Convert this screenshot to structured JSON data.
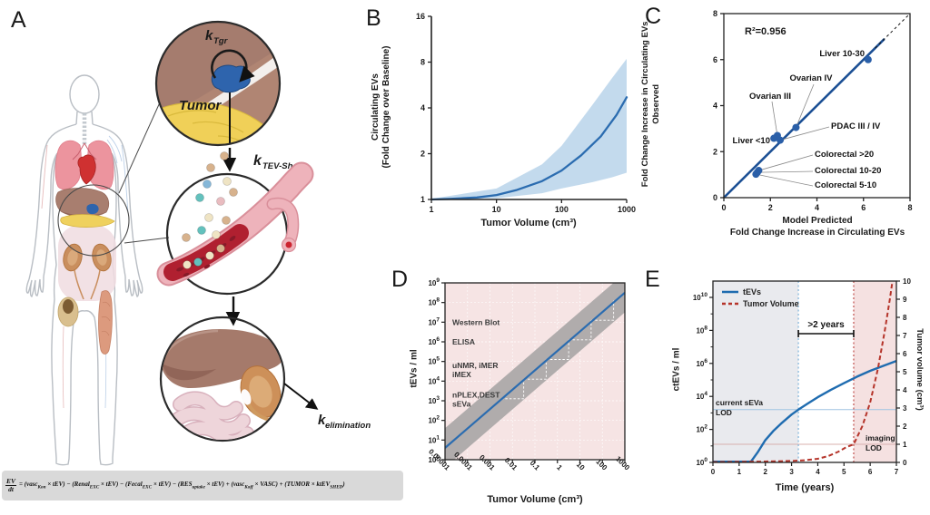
{
  "panels": {
    "A": {
      "letter": "A",
      "labels": {
        "k_tgr_base": "k",
        "k_tgr_sub": "Tgr",
        "tumor": "Tumor",
        "k_shed_base": "k",
        "k_shed_sub": "TEV-Shed",
        "k_elim_base": "k",
        "k_elim_sub": "elimination"
      },
      "equation": {
        "numerator": "EV",
        "denominator": "dt",
        "segments": [
          {
            "t": "n",
            "s": " = (vasc"
          },
          {
            "t": "s",
            "s": "Kon"
          },
          {
            "t": "n",
            "s": " × tEV) − (Renal"
          },
          {
            "t": "s",
            "s": "EXC"
          },
          {
            "t": "n",
            "s": " × tEV) − (Fecal"
          },
          {
            "t": "s",
            "s": "EXC"
          },
          {
            "t": "n",
            "s": " × tEV) − (RES"
          },
          {
            "t": "s",
            "s": "uptake"
          },
          {
            "t": "n",
            "s": " × tEV) + (vasc"
          },
          {
            "t": "s",
            "s": "Koff"
          },
          {
            "t": "n",
            "s": " × VASC) + (TUMOR × ktEV"
          },
          {
            "t": "s",
            "s": "SHED"
          },
          {
            "t": "n",
            "s": ")"
          }
        ]
      }
    },
    "B": {
      "letter": "B"
    },
    "C": {
      "letter": "C"
    },
    "D": {
      "letter": "D"
    },
    "E": {
      "letter": "E"
    }
  },
  "chart_data": [
    {
      "panel": "B",
      "type": "line",
      "xlabel": "Tumor Volume (cm³)",
      "ylabel_lines": [
        "Circulating EVs",
        "(Fold Change over Baseline)"
      ],
      "xscale": "log",
      "yscale": "log2",
      "xlim": [
        1,
        1000
      ],
      "ylim": [
        1,
        16
      ],
      "xticks": [
        {
          "v": 1,
          "label": "1"
        },
        {
          "v": 10,
          "label": "10"
        },
        {
          "v": 100,
          "label": "100"
        },
        {
          "v": 1000,
          "label": "1000"
        }
      ],
      "yticks": [
        {
          "v": 1,
          "label": "1"
        },
        {
          "v": 2,
          "label": "2"
        },
        {
          "v": 4,
          "label": "4"
        },
        {
          "v": 8,
          "label": "8"
        },
        {
          "v": 16,
          "label": "16"
        }
      ],
      "series": [
        {
          "name": "model mean fold change",
          "color": "#2b6cb0",
          "x": [
            1,
            2,
            5,
            10,
            20,
            50,
            100,
            200,
            400,
            700,
            1000
          ],
          "y": [
            1.0,
            1.01,
            1.03,
            1.07,
            1.15,
            1.32,
            1.55,
            1.95,
            2.6,
            3.6,
            4.7
          ]
        }
      ],
      "band": {
        "name": "credible interval",
        "color": "#b9d3ea",
        "x": [
          1,
          10,
          50,
          100,
          300,
          600,
          1000
        ],
        "upper": [
          1.01,
          1.18,
          1.7,
          2.25,
          4.2,
          6.3,
          8.4
        ],
        "lower": [
          1.0,
          1.02,
          1.1,
          1.18,
          1.3,
          1.4,
          1.5
        ]
      }
    },
    {
      "panel": "C",
      "type": "scatter",
      "annotation": "R²=0.956",
      "annotation_color": "#2b6cb0",
      "xlabel_lines": [
        "Model Predicted",
        "Fold Change Increase in Circulating EVs"
      ],
      "ylabel_lines": [
        "Fold Change Increase in Circulating EVs",
        "Observed"
      ],
      "xlim": [
        0,
        8
      ],
      "ylim": [
        0,
        8
      ],
      "xticks": [
        {
          "v": 0,
          "label": "0"
        },
        {
          "v": 2,
          "label": "2"
        },
        {
          "v": 4,
          "label": "4"
        },
        {
          "v": 6,
          "label": "6"
        },
        {
          "v": 8,
          "label": "8"
        }
      ],
      "yticks": [
        {
          "v": 0,
          "label": "0"
        },
        {
          "v": 2,
          "label": "2"
        },
        {
          "v": 4,
          "label": "4"
        },
        {
          "v": 6,
          "label": "6"
        },
        {
          "v": 8,
          "label": "8"
        }
      ],
      "identity_line": true,
      "point_color": "#2a5fa8",
      "points": [
        {
          "label": "Liver 10-30",
          "x": 6.2,
          "y": 6.0
        },
        {
          "label": "Ovarian IV",
          "x": 3.1,
          "y": 3.05
        },
        {
          "label": "Ovarian III",
          "x": 2.3,
          "y": 2.7
        },
        {
          "label": "Liver <10",
          "x": 2.15,
          "y": 2.58
        },
        {
          "label": "PDAC III / IV",
          "x": 2.42,
          "y": 2.5
        },
        {
          "label": "Colorectal >20",
          "x": 1.5,
          "y": 1.18
        },
        {
          "label": "Colorectal 10-20",
          "x": 1.44,
          "y": 1.1
        },
        {
          "label": "Colorectal 5-10",
          "x": 1.38,
          "y": 1.02
        }
      ]
    },
    {
      "panel": "D",
      "type": "line",
      "xlabel": "Tumor Volume (cm³)",
      "ylabel": "tEVs / ml",
      "xscale": "log",
      "yscale": "log",
      "bg_color": "#f6e4e4",
      "xticks": [
        {
          "exp": -5,
          "label": "0.00001"
        },
        {
          "exp": -4,
          "label": "0.0001"
        },
        {
          "exp": -3,
          "label": "0.001"
        },
        {
          "exp": -2,
          "label": "0.01"
        },
        {
          "exp": -1,
          "label": "0.1"
        },
        {
          "exp": 0,
          "label": "1"
        },
        {
          "exp": 1,
          "label": "10"
        },
        {
          "exp": 2,
          "label": "100"
        },
        {
          "exp": 3,
          "label": "1000"
        }
      ],
      "yticks_exponents": [
        0,
        1,
        2,
        3,
        4,
        5,
        6,
        7,
        8,
        9
      ],
      "line": {
        "name": "tEVs vs tumor volume",
        "color": "#2b6cb0",
        "x_log10": [
          -5,
          3
        ],
        "y_log10": [
          0.6,
          8.5
        ]
      },
      "band": {
        "color": "#b0acac",
        "halfwidth_decades": 1.0
      },
      "assay_labels": [
        {
          "lines": [
            "Western Blot"
          ],
          "log10_y": 7
        },
        {
          "lines": [
            "ELISA"
          ],
          "log10_y": 6
        },
        {
          "lines": [
            "uNMR, iMER",
            "iMEX"
          ],
          "log10_y": 4.8
        },
        {
          "lines": [
            "nPLEX,DEST",
            "sEVa"
          ],
          "log10_y": 3.3
        }
      ]
    },
    {
      "panel": "E",
      "type": "line",
      "xlabel": "Time (years)",
      "ylabel_left": "ctEVs / ml",
      "ylabel_right": "Tumor volume (cm³)",
      "xticks": [
        "0",
        "1",
        "2",
        "3",
        "4",
        "5",
        "6",
        "7"
      ],
      "yticks_left_exponents": [
        0,
        2,
        4,
        6,
        8,
        10
      ],
      "yticks_right": [
        "0",
        "1",
        "2",
        "3",
        "4",
        "5",
        "6",
        "7",
        "8",
        "9",
        "10"
      ],
      "legend": [
        {
          "label": "tEVs",
          "color": "#1f6cb0",
          "dash": false
        },
        {
          "label": "Tumor Volume",
          "color": "#b5342a",
          "dash": true
        }
      ],
      "annotation": ">2 years",
      "lod_lines": [
        {
          "label_lines": [
            "current sEVa",
            "LOD"
          ],
          "log10_y": 3.2,
          "color": "#9fc4e2",
          "text_color": "#5b9bd5"
        },
        {
          "label_lines": [
            "imaging",
            "LOD"
          ],
          "right_y": 1,
          "color": "#d8b0ae",
          "text_color": "#9c3a38"
        }
      ],
      "vlines": [
        {
          "x": 3.26,
          "color": "#7fb3d9"
        },
        {
          "x": 5.37,
          "color": "#c0504d"
        }
      ],
      "regions": [
        {
          "x0": 0,
          "x1": 3.26,
          "color": "#e9eaee"
        },
        {
          "x0": 5.37,
          "x1": 7,
          "color": "#f5e1e1"
        }
      ],
      "series": [
        {
          "name": "tEVs",
          "color": "#1f6cb0",
          "x": [
            0,
            1.45,
            1.7,
            2,
            2.3,
            2.6,
            3,
            3.26,
            3.6,
            4,
            4.5,
            5,
            5.5,
            6,
            6.5,
            7
          ],
          "log10_y": [
            0,
            0,
            0.6,
            1.35,
            1.9,
            2.35,
            2.9,
            3.2,
            3.55,
            3.95,
            4.4,
            4.8,
            5.2,
            5.55,
            5.85,
            6.15
          ]
        },
        {
          "name": "Tumor Volume",
          "color": "#b5342a",
          "x": [
            0,
            1,
            2,
            3,
            3.5,
            4,
            4.4,
            4.8,
            5.1,
            5.37,
            5.7,
            6,
            6.3,
            6.55,
            6.75,
            6.88
          ],
          "y": [
            0.02,
            0.03,
            0.05,
            0.08,
            0.12,
            0.2,
            0.35,
            0.6,
            0.85,
            1.0,
            2.0,
            3.3,
            5.2,
            7.2,
            9.0,
            10.3
          ]
        }
      ]
    }
  ]
}
